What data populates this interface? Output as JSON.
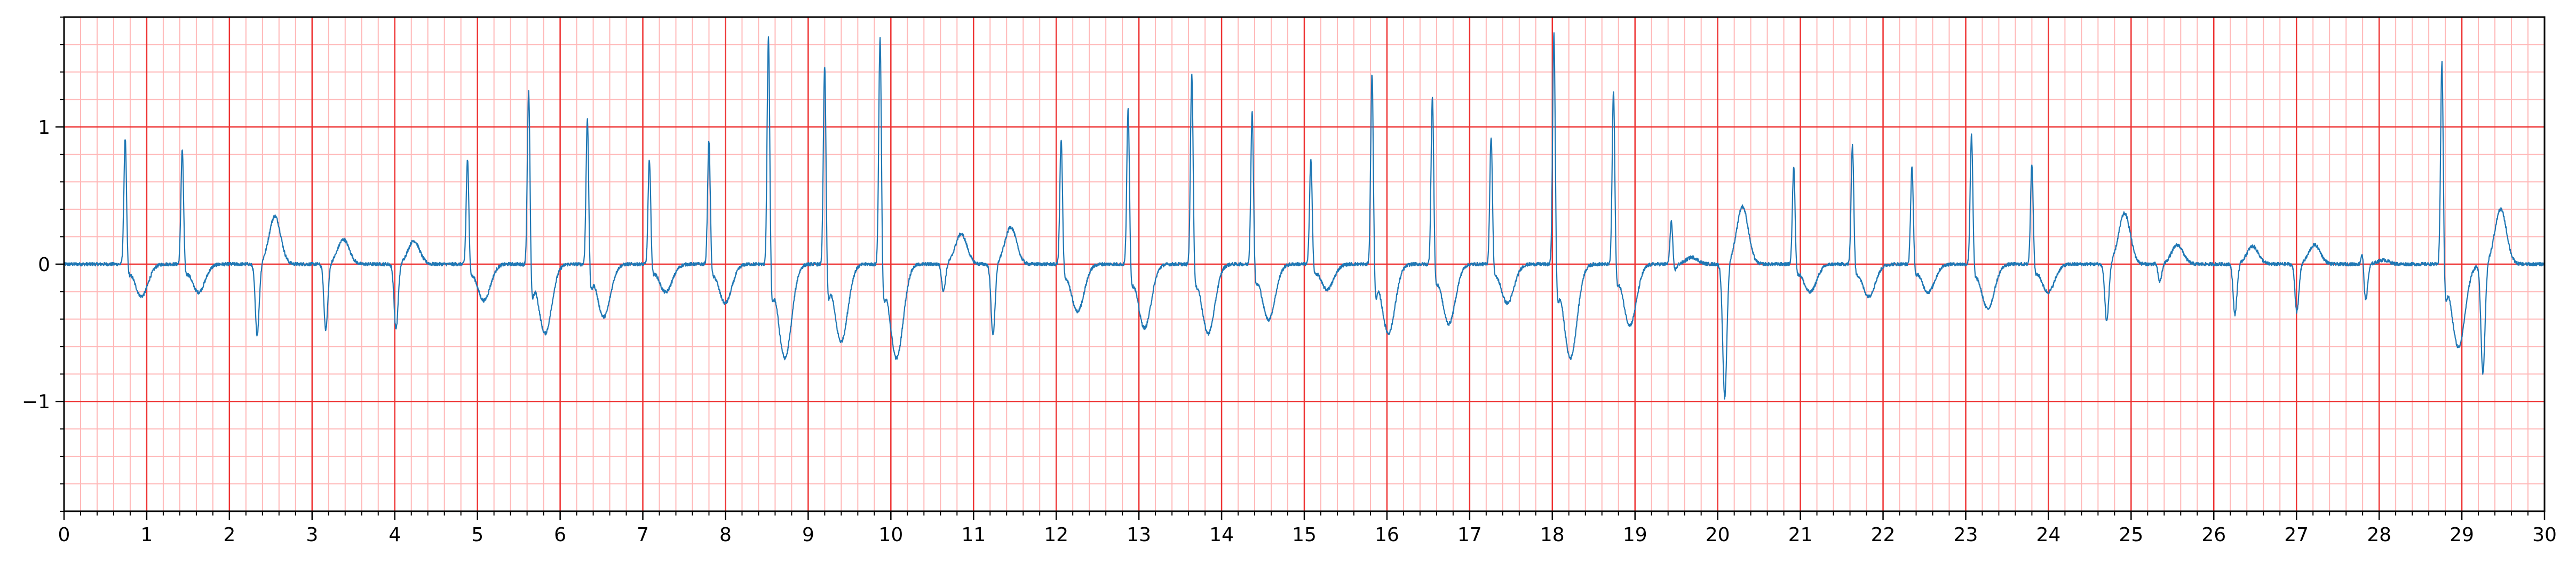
{
  "chart_data": {
    "type": "line",
    "title": "",
    "xlabel": "",
    "ylabel": "",
    "xlim": [
      0,
      30
    ],
    "ylim": [
      -1.8,
      1.8
    ],
    "x_ticks": [
      0,
      1,
      2,
      3,
      4,
      5,
      6,
      7,
      8,
      9,
      10,
      11,
      12,
      13,
      14,
      15,
      16,
      17,
      18,
      19,
      20,
      21,
      22,
      23,
      24,
      25,
      26,
      27,
      28,
      29,
      30
    ],
    "x_tick_labels": [
      "0",
      "1",
      "2",
      "3",
      "4",
      "5",
      "6",
      "7",
      "8",
      "9",
      "10",
      "11",
      "12",
      "13",
      "14",
      "15",
      "16",
      "17",
      "18",
      "19",
      "20",
      "21",
      "22",
      "23",
      "24",
      "25",
      "26",
      "27",
      "28",
      "29",
      "30"
    ],
    "y_ticks": [
      -1,
      0,
      1
    ],
    "y_tick_labels": [
      "−1",
      "0",
      "1"
    ],
    "grid": true,
    "major_grid_x_step": 1,
    "major_grid_y_step": 1,
    "minor_grid_x_step": 0.2,
    "minor_grid_y_step": 0.2,
    "colors": {
      "trace": "#1f77b4",
      "major_grid": "#ee3333",
      "minor_grid": "#ffb8b8",
      "axes": "#000000"
    },
    "series": [
      {
        "beats": [
          {
            "t": 0.74,
            "r": 0.94,
            "s": -0.05,
            "tw": 0.02,
            "neg": -0.25
          },
          {
            "t": 1.43,
            "r": 0.86,
            "s": -0.05,
            "tw": 0.02,
            "neg": -0.22
          },
          {
            "t": 2.3,
            "r": 0.05,
            "s": -0.52,
            "tw": 0.35,
            "neg": 0
          },
          {
            "t": 3.13,
            "r": 0.05,
            "s": -0.48,
            "tw": 0.18,
            "neg": 0
          },
          {
            "t": 3.98,
            "r": 0.03,
            "s": -0.48,
            "tw": 0.17,
            "neg": 0
          },
          {
            "t": 4.88,
            "r": 0.79,
            "s": -0.05,
            "tw": 0.02,
            "neg": -0.28
          },
          {
            "t": 5.62,
            "r": 1.35,
            "s": -0.2,
            "tw": 0.02,
            "neg": -0.52
          },
          {
            "t": 6.33,
            "r": 1.13,
            "s": -0.15,
            "tw": 0.02,
            "neg": -0.4
          },
          {
            "t": 7.08,
            "r": 0.79,
            "s": -0.05,
            "tw": 0.02,
            "neg": -0.22
          },
          {
            "t": 7.8,
            "r": 0.93,
            "s": -0.05,
            "tw": 0.02,
            "neg": -0.3
          },
          {
            "t": 8.52,
            "r": 1.75,
            "s": -0.2,
            "tw": 0.02,
            "neg": -0.7
          },
          {
            "t": 9.2,
            "r": 1.54,
            "s": -0.2,
            "tw": 0.02,
            "neg": -0.58
          },
          {
            "t": 9.87,
            "r": 1.75,
            "s": -0.2,
            "tw": 0.02,
            "neg": -0.7
          },
          {
            "t": 10.6,
            "r": 0.03,
            "s": -0.2,
            "tw": 0.22,
            "neg": 0
          },
          {
            "t": 11.2,
            "r": 0.03,
            "s": -0.52,
            "tw": 0.27,
            "neg": 0
          },
          {
            "t": 12.06,
            "r": 0.94,
            "s": -0.05,
            "tw": 0.02,
            "neg": -0.36
          },
          {
            "t": 12.87,
            "r": 1.19,
            "s": -0.1,
            "tw": 0.02,
            "neg": -0.48
          },
          {
            "t": 13.64,
            "r": 1.45,
            "s": -0.1,
            "tw": 0.02,
            "neg": -0.52
          },
          {
            "t": 14.37,
            "r": 1.16,
            "s": -0.1,
            "tw": 0.02,
            "neg": -0.42
          },
          {
            "t": 15.08,
            "r": 0.79,
            "s": -0.05,
            "tw": 0.02,
            "neg": -0.2
          },
          {
            "t": 15.82,
            "r": 1.48,
            "s": -0.2,
            "tw": 0.02,
            "neg": -0.52
          },
          {
            "t": 16.55,
            "r": 1.27,
            "s": -0.1,
            "tw": 0.02,
            "neg": -0.45
          },
          {
            "t": 17.26,
            "r": 0.96,
            "s": -0.05,
            "tw": 0.02,
            "neg": -0.3
          },
          {
            "t": 18.02,
            "r": 1.78,
            "s": -0.2,
            "tw": 0.02,
            "neg": -0.7
          },
          {
            "t": 18.74,
            "r": 1.31,
            "s": -0.1,
            "tw": 0.02,
            "neg": -0.46
          },
          {
            "t": 19.44,
            "r": 0.33,
            "s": -0.05,
            "tw": 0.05,
            "neg": 0
          },
          {
            "t": 20.05,
            "r": 0.03,
            "s": -0.98,
            "tw": 0.42,
            "neg": 0
          },
          {
            "t": 20.92,
            "r": 0.74,
            "s": -0.05,
            "tw": 0.02,
            "neg": -0.22
          },
          {
            "t": 21.63,
            "r": 0.9,
            "s": -0.05,
            "tw": 0.02,
            "neg": -0.25
          },
          {
            "t": 22.35,
            "r": 0.74,
            "s": -0.05,
            "tw": 0.02,
            "neg": -0.22
          },
          {
            "t": 23.07,
            "r": 0.97,
            "s": -0.05,
            "tw": 0.02,
            "neg": -0.34
          },
          {
            "t": 23.8,
            "r": 0.76,
            "s": -0.05,
            "tw": 0.02,
            "neg": -0.22
          },
          {
            "t": 24.67,
            "r": 0.03,
            "s": -0.42,
            "tw": 0.37,
            "neg": 0
          },
          {
            "t": 25.31,
            "r": 0.03,
            "s": -0.13,
            "tw": 0.14,
            "neg": 0
          },
          {
            "t": 26.22,
            "r": 0.05,
            "s": -0.37,
            "tw": 0.13,
            "neg": 0
          },
          {
            "t": 26.97,
            "r": 0.03,
            "s": -0.35,
            "tw": 0.14,
            "neg": 0
          },
          {
            "t": 27.8,
            "r": 0.15,
            "s": -0.27,
            "tw": 0.03,
            "neg": 0
          },
          {
            "t": 28.76,
            "r": 1.57,
            "s": -0.2,
            "tw": 0.02,
            "neg": -0.62
          },
          {
            "t": 29.22,
            "r": 0.03,
            "s": -0.8,
            "tw": 0.4,
            "neg": 0
          }
        ]
      }
    ]
  }
}
